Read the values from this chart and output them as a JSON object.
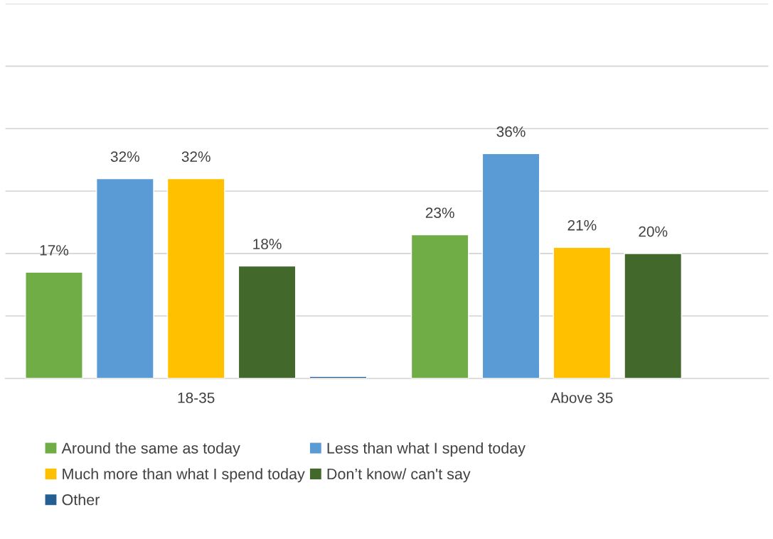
{
  "chart_data": {
    "type": "bar",
    "categories": [
      "18-35",
      "Above 35"
    ],
    "series": [
      {
        "name": "Around the same as today",
        "color": "#70ad47",
        "values": [
          17,
          23
        ],
        "value_labels": [
          "17%",
          "23%"
        ]
      },
      {
        "name": "Less than what I spend today",
        "color": "#5b9bd5",
        "values": [
          32,
          36
        ],
        "value_labels": [
          "32%",
          "36%"
        ]
      },
      {
        "name": "Much more than what I spend today",
        "color": "#ffc000",
        "values": [
          32,
          21
        ],
        "value_labels": [
          "32%",
          "21%"
        ]
      },
      {
        "name": "Don’t know/ can't say",
        "color": "#43682b",
        "values": [
          18,
          20
        ],
        "value_labels": [
          "18%",
          "20%"
        ]
      },
      {
        "name": "Other",
        "color": "#255e91",
        "values": [
          0.3,
          null
        ],
        "value_labels": [
          null,
          null
        ]
      }
    ],
    "ylim": [
      0,
      60
    ],
    "yticks": [
      {
        "value": 0,
        "label": null
      },
      {
        "value": 10,
        "label": null
      },
      {
        "value": 20,
        "label": null
      },
      {
        "value": 30,
        "label": null
      },
      {
        "value": 40,
        "label": null
      },
      {
        "value": 50,
        "label": null
      },
      {
        "value": 60,
        "label": null
      }
    ],
    "tick_labels": "x",
    "grid": "y",
    "legend": "bottom"
  }
}
